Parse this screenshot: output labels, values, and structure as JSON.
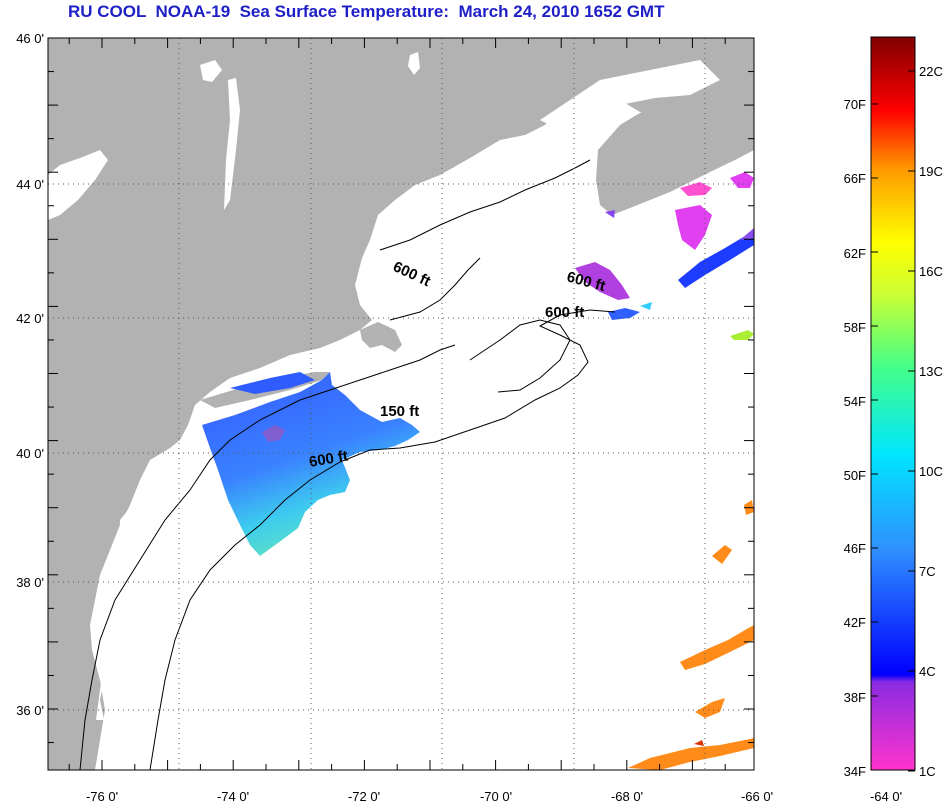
{
  "title": "RU COOL  NOAA-19  Sea Surface Temperature:  March 24, 2010 1652 GMT",
  "lat_labels": [
    "46 0'",
    "44 0'",
    "42 0'",
    "40 0'",
    "38 0'",
    "36 0'"
  ],
  "lon_labels": [
    "-76 0'",
    "-74 0'",
    "-72 0'",
    "-70 0'",
    "-68 0'",
    "-66 0'",
    "-64 0'"
  ],
  "depth_labels": {
    "gulf_of_maine": "600 ft",
    "browns_bank": "600 ft",
    "georges_bank": "600 ft",
    "nantucket": "150 ft",
    "shelf_edge": "600 ft"
  },
  "colorbar": {
    "fahrenheit": [
      "70F",
      "66F",
      "62F",
      "58F",
      "54F",
      "50F",
      "46F",
      "42F",
      "38F",
      "34F"
    ],
    "celsius": [
      "22C",
      "19C",
      "16C",
      "13C",
      "10C",
      "7C",
      "4C",
      "1C"
    ]
  },
  "colors": {
    "land": "#b2b2b2",
    "title": "#1f1fc8"
  }
}
